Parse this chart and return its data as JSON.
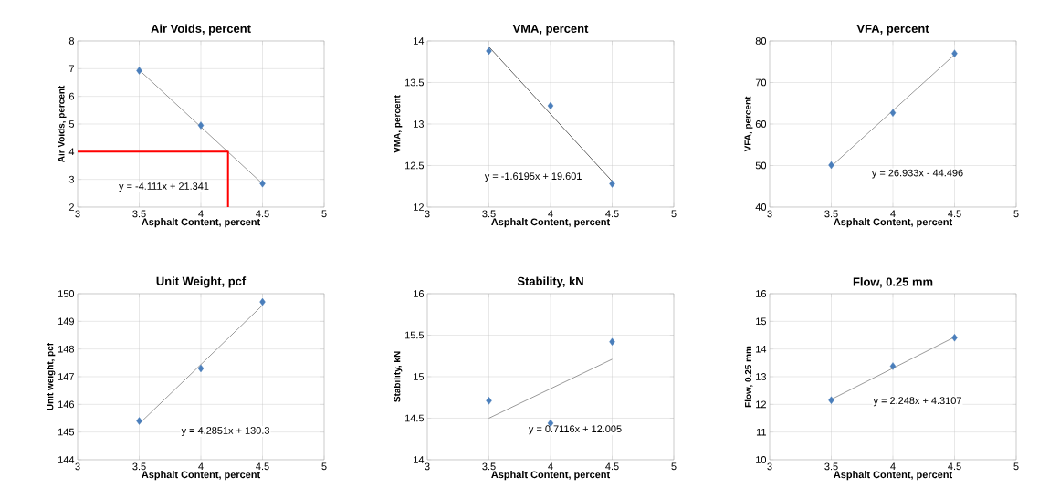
{
  "chart_data": [
    {
      "type": "scatter",
      "title": "Air Voids, percent",
      "xlabel": "Asphalt Content, percent",
      "ylabel": "Air Voids, percent",
      "xlim": [
        3,
        5
      ],
      "xticks": [
        3,
        3.5,
        4,
        4.5,
        5
      ],
      "ylim": [
        2,
        8
      ],
      "yticks": [
        2,
        3,
        4,
        5,
        6,
        7,
        8
      ],
      "grid": true,
      "annotations": [
        "y = -4.111x + 21.341"
      ],
      "series": [
        {
          "color": "#4a7ebb",
          "marker": "diamond",
          "x": [
            3.5,
            4,
            4.5
          ],
          "values": [
            6.93,
            4.95,
            2.85
          ]
        },
        {
          "type": "line",
          "marker": "none",
          "color": "#808080",
          "x": [
            3.5,
            4.5
          ],
          "values": [
            6.95,
            2.84
          ]
        },
        {
          "type": "line",
          "marker": "none",
          "color": "#ff0000",
          "x": [
            3,
            4.22,
            4.22
          ],
          "values": [
            4,
            4,
            2
          ]
        }
      ]
    },
    {
      "type": "scatter",
      "title": "VMA, percent",
      "xlabel": "Asphalt Content, percent",
      "ylabel": "VMA, percent",
      "xlim": [
        3,
        5
      ],
      "xticks": [
        3,
        3.5,
        4,
        4.5,
        5
      ],
      "ylim": [
        12,
        14
      ],
      "yticks": [
        12,
        12.5,
        13,
        13.5,
        14
      ],
      "grid": true,
      "annotations": [
        "y = -1.6195x + 19.601"
      ],
      "series": [
        {
          "color": "#4a7ebb",
          "marker": "diamond",
          "x": [
            3.5,
            4,
            4.5
          ],
          "values": [
            13.88,
            13.22,
            12.28
          ]
        },
        {
          "type": "line",
          "marker": "none",
          "color": "#404040",
          "x": [
            3.5,
            4.5
          ],
          "values": [
            13.93,
            12.31
          ]
        }
      ]
    },
    {
      "type": "scatter",
      "title": "VFA, percent",
      "xlabel": "Asphalt Content, percent",
      "ylabel": "VFA, percent",
      "xlim": [
        3,
        5
      ],
      "xticks": [
        3,
        3.5,
        4,
        4.5,
        5
      ],
      "ylim": [
        40,
        80
      ],
      "yticks": [
        40,
        50,
        60,
        70,
        80
      ],
      "grid": true,
      "annotations": [
        "y = 26.933x - 44.496"
      ],
      "series": [
        {
          "color": "#4a7ebb",
          "marker": "diamond",
          "x": [
            3.5,
            4,
            4.5
          ],
          "values": [
            50.1,
            62.7,
            77.0
          ]
        },
        {
          "type": "line",
          "marker": "none",
          "color": "#808080",
          "x": [
            3.5,
            4.5
          ],
          "values": [
            49.8,
            76.7
          ]
        }
      ]
    },
    {
      "type": "scatter",
      "title": "Unit Weight, pcf",
      "xlabel": "Asphalt Content, percent",
      "ylabel": "Unit weight, pcf",
      "xlim": [
        3,
        5
      ],
      "xticks": [
        3,
        3.5,
        4,
        4.5,
        5
      ],
      "ylim": [
        144,
        150
      ],
      "yticks": [
        144,
        145,
        146,
        147,
        148,
        149,
        150
      ],
      "grid": true,
      "annotations": [
        "y = 4.2851x + 130.3"
      ],
      "series": [
        {
          "color": "#4a7ebb",
          "marker": "diamond",
          "x": [
            3.5,
            4,
            4.5
          ],
          "values": [
            145.4,
            147.3,
            149.7
          ]
        },
        {
          "type": "line",
          "marker": "none",
          "color": "#808080",
          "x": [
            3.5,
            4.5
          ],
          "values": [
            145.3,
            149.58
          ]
        }
      ]
    },
    {
      "type": "scatter",
      "title": "Stability, kN",
      "xlabel": "Asphalt Content, percent",
      "ylabel": "Stability, kN",
      "xlim": [
        3,
        5
      ],
      "xticks": [
        3,
        3.5,
        4,
        4.5,
        5
      ],
      "ylim": [
        14,
        16
      ],
      "yticks": [
        14,
        14.5,
        15,
        15.5,
        16
      ],
      "grid": true,
      "annotations": [
        "y = 0.7116x + 12.005"
      ],
      "series": [
        {
          "color": "#4a7ebb",
          "marker": "diamond",
          "x": [
            3.5,
            4,
            4.5
          ],
          "values": [
            14.71,
            14.44,
            15.42
          ]
        },
        {
          "type": "line",
          "marker": "none",
          "color": "#808080",
          "x": [
            3.5,
            4.5
          ],
          "values": [
            14.5,
            15.21
          ]
        }
      ]
    },
    {
      "type": "scatter",
      "title": "Flow, 0.25 mm",
      "xlabel": "Asphalt Content, percent",
      "ylabel": "Flow, 0.25 mm",
      "xlim": [
        3,
        5
      ],
      "xticks": [
        3,
        3.5,
        4,
        4.5,
        5
      ],
      "ylim": [
        10,
        16
      ],
      "yticks": [
        10,
        11,
        12,
        13,
        14,
        15,
        16
      ],
      "grid": true,
      "annotations": [
        "y = 2.248x + 4.3107"
      ],
      "series": [
        {
          "color": "#4a7ebb",
          "marker": "diamond",
          "x": [
            3.5,
            4,
            4.5
          ],
          "values": [
            12.15,
            13.38,
            14.41
          ]
        },
        {
          "type": "line",
          "marker": "none",
          "color": "#808080",
          "x": [
            3.5,
            4.5
          ],
          "values": [
            12.18,
            14.43
          ]
        }
      ]
    }
  ]
}
